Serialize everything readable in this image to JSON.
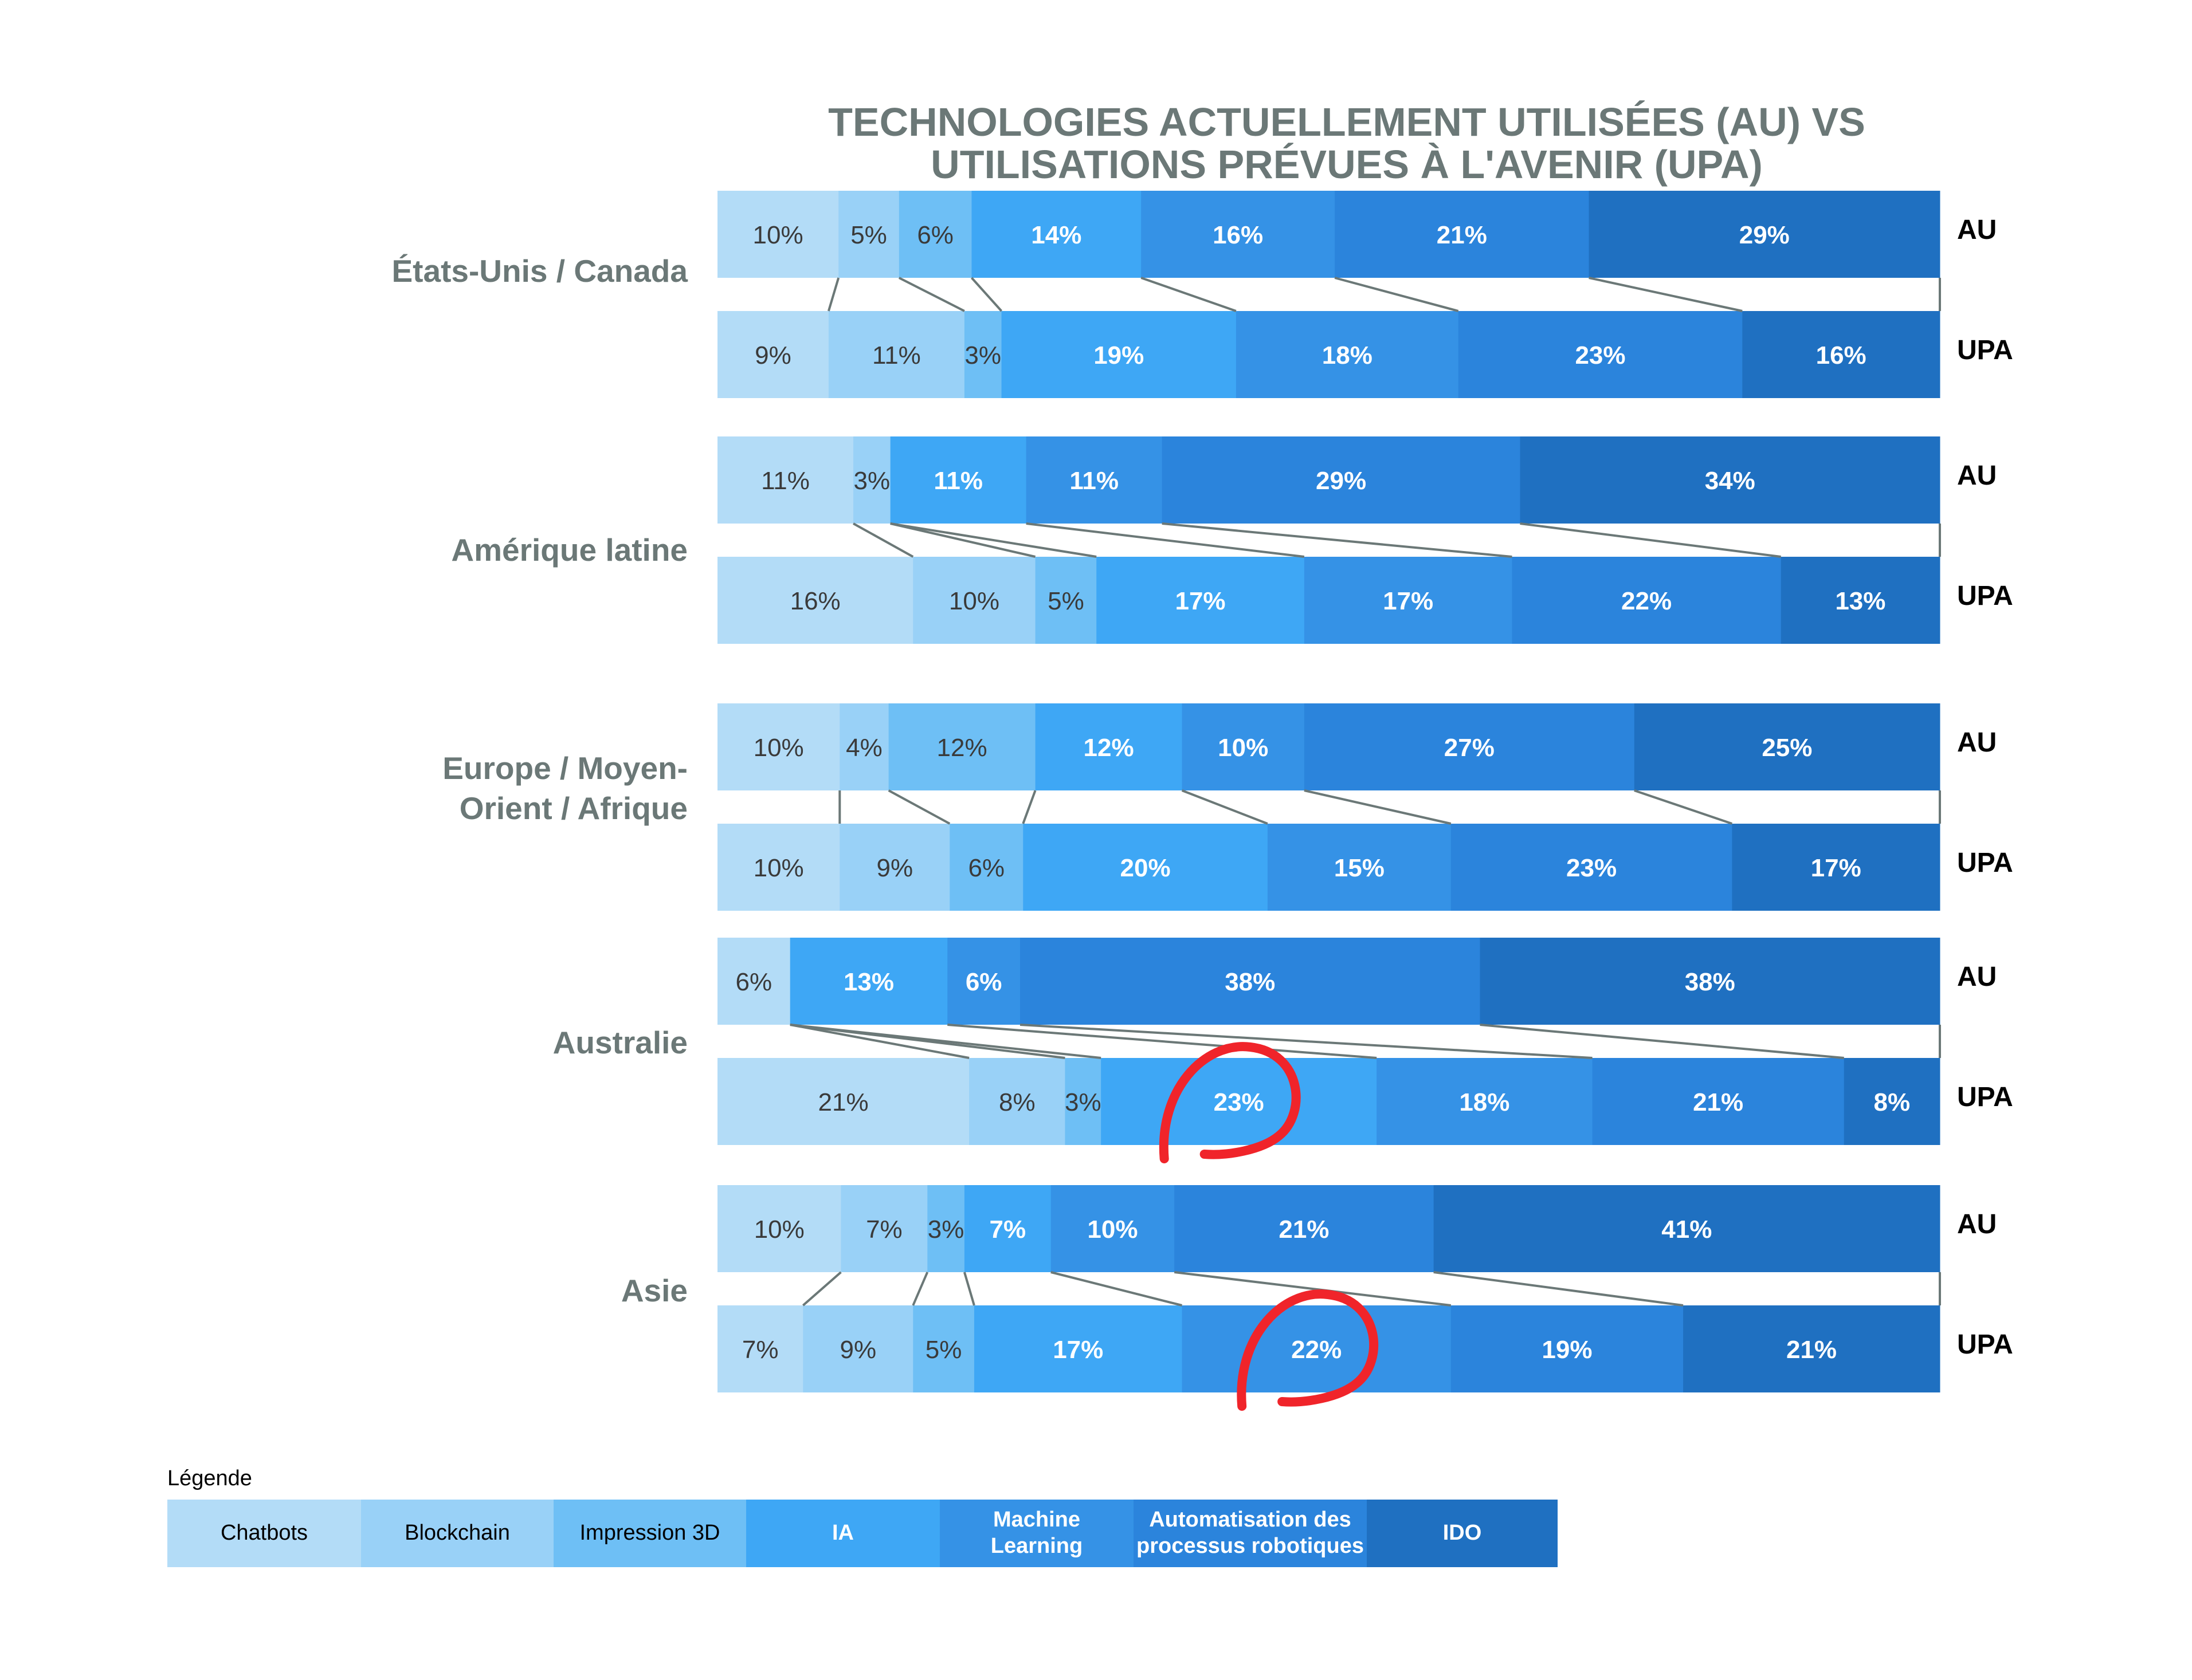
{
  "title": [
    "TECHNOLOGIES ACTUELLEMENT UTILISÉES (AU) VS",
    "UTILISATIONS PRÉVUES À L'AVENIR (UPA)"
  ],
  "legend_title": "Légende",
  "legend": [
    {
      "label": "Chatbots",
      "color": "#b3dcf7",
      "text_color": "#000000"
    },
    {
      "label": "Blockchain",
      "color": "#99d1f7",
      "text_color": "#000000"
    },
    {
      "label": "Impression 3D",
      "color": "#6ebff5",
      "text_color": "#000000"
    },
    {
      "label": "IA",
      "color": "#3ea7f5",
      "text_color": "#ffffff"
    },
    {
      "label": "Machine\nLearning",
      "color": "#3592e6",
      "text_color": "#ffffff"
    },
    {
      "label": "Automatisation des\nprocessus robotiques",
      "color": "#2b84dc",
      "text_color": "#ffffff"
    },
    {
      "label": "IDO",
      "color": "#1f70c1",
      "text_color": "#ffffff"
    }
  ],
  "row_labels": {
    "au": "AU",
    "upa": "UPA"
  },
  "chart_data": {
    "type": "bar",
    "orientation": "horizontal-stacked-100",
    "title": "TECHNOLOGIES ACTUELLEMENT UTILISÉES (AU) VS UTILISATIONS PRÉVUES À L'AVENIR (UPA)",
    "series_names": [
      "Chatbots",
      "Blockchain",
      "Impression 3D",
      "IA",
      "Machine Learning",
      "Automatisation des processus robotiques",
      "IDO"
    ],
    "groups": [
      {
        "name": "États-Unis / Canada",
        "AU": [
          10,
          5,
          6,
          14,
          16,
          21,
          29
        ],
        "UPA": [
          9,
          11,
          3,
          19,
          18,
          23,
          16
        ]
      },
      {
        "name": "Amérique latine",
        "AU": [
          11,
          3,
          0,
          11,
          11,
          29,
          34
        ],
        "UPA": [
          16,
          10,
          5,
          17,
          17,
          22,
          13
        ]
      },
      {
        "name": "Europe / Moyen-Orient / Afrique",
        "AU": [
          10,
          4,
          12,
          12,
          10,
          27,
          25
        ],
        "UPA": [
          10,
          9,
          6,
          20,
          15,
          23,
          17
        ]
      },
      {
        "name": "Australie",
        "AU": [
          6,
          0,
          0,
          13,
          6,
          38,
          38
        ],
        "UPA": [
          21,
          8,
          3,
          23,
          18,
          21,
          8
        ]
      },
      {
        "name": "Asie",
        "AU": [
          10,
          7,
          3,
          7,
          10,
          21,
          41
        ],
        "UPA": [
          7,
          9,
          5,
          17,
          22,
          19,
          21
        ]
      }
    ],
    "annotations": [
      "red hand-drawn circle around Australie UPA IA 23%",
      "red hand-drawn circle around Asie UPA Machine Learning 22%"
    ]
  }
}
